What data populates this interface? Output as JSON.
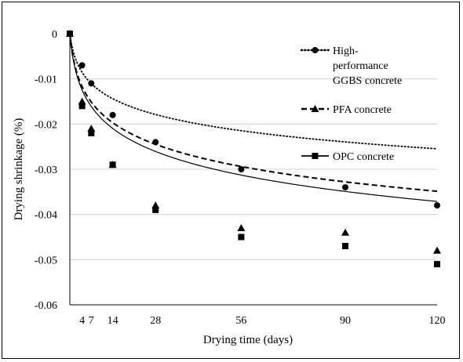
{
  "chart_data": {
    "type": "scatter",
    "xlabel": "Drying time (days)",
    "ylabel": "Drying shrinkage (%)",
    "xlim": [
      0,
      120
    ],
    "ylim": [
      -0.06,
      0
    ],
    "xticks": [
      4,
      7,
      14,
      28,
      56,
      90,
      120
    ],
    "yticks": [
      0,
      -0.01,
      -0.02,
      -0.03,
      -0.04,
      -0.05,
      -0.06
    ],
    "ytick_labels": [
      "0",
      "-0.01",
      "-0.02",
      "-0.03",
      "-0.04",
      "-0.05",
      "-0.06"
    ],
    "grid": "horizontal",
    "legend_position": "right",
    "series": [
      {
        "name": "High-performance GGBS concrete",
        "legend_lines": [
          "High-",
          "performance",
          "GGBS concrete"
        ],
        "marker": "circle",
        "line_style": "dotted",
        "x": [
          0,
          4,
          7,
          14,
          28,
          56,
          90,
          120
        ],
        "y": [
          0,
          -0.007,
          -0.011,
          -0.018,
          -0.024,
          -0.03,
          -0.034,
          -0.038
        ],
        "trend": {
          "a": 0.0,
          "b": -0.00531,
          "c": 1.0
        },
        "trend_note": "logarithmic fit"
      },
      {
        "name": "PFA concrete",
        "legend_lines": [
          "PFA concrete"
        ],
        "marker": "triangle",
        "line_style": "dashed",
        "x": [
          0,
          4,
          7,
          14,
          28,
          56,
          90,
          120
        ],
        "y": [
          0,
          -0.015,
          -0.021,
          -0.029,
          -0.038,
          -0.043,
          -0.044,
          -0.048
        ],
        "trend": {
          "a": 0.0,
          "b": -0.00727,
          "c": 1.0
        }
      },
      {
        "name": "OPC concrete",
        "legend_lines": [
          "OPC concrete"
        ],
        "marker": "square",
        "line_style": "solid",
        "x": [
          0,
          4,
          7,
          14,
          28,
          56,
          90,
          120
        ],
        "y": [
          0,
          -0.016,
          -0.022,
          -0.029,
          -0.039,
          -0.045,
          -0.047,
          -0.051
        ],
        "trend": {
          "a": 0.0,
          "b": -0.00774,
          "c": 1.0
        }
      }
    ]
  }
}
